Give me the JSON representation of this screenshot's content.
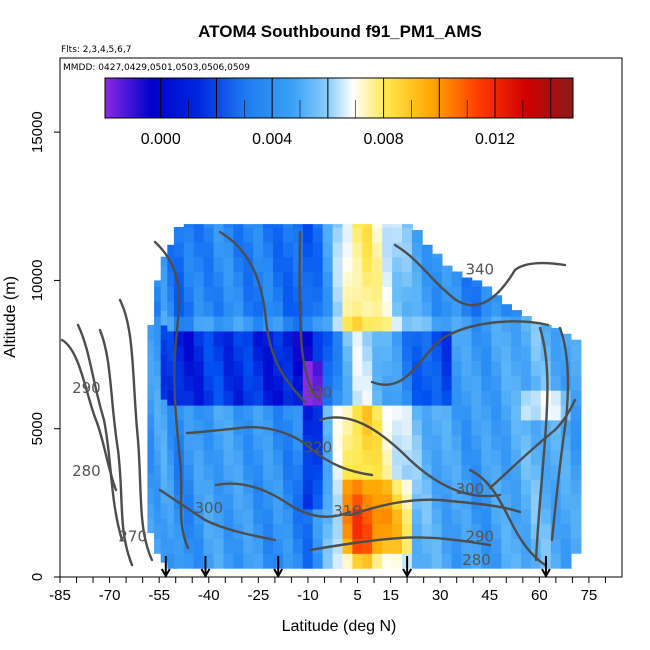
{
  "chart_data": {
    "type": "heatmap",
    "title": "ATOM4 Southbound f91_PM1_AMS",
    "flights_note": "Flts: 2,3,4,5,6,7",
    "dates_note": "MMDD: 0427,0429,0501,0503,0506,0509",
    "xlabel": "Latitude (deg N)",
    "ylabel": "Altitude (m)",
    "xlim": [
      -85,
      85
    ],
    "ylim": [
      0,
      17500
    ],
    "x_ticks": [
      -85,
      -70,
      -55,
      -40,
      -25,
      -10,
      5,
      15,
      30,
      45,
      60,
      75
    ],
    "y_ticks": [
      0,
      5000,
      10000,
      15000
    ],
    "grid": false,
    "colorbar": {
      "range": [
        -0.002,
        0.0148
      ],
      "tick_values": [
        0.0,
        0.004,
        0.008,
        0.012
      ],
      "tick_labels": [
        "0.000",
        "0.004",
        "0.008",
        "0.012"
      ],
      "colors": [
        "#8a2be2",
        "#0000cc",
        "#0050f0",
        "#2a8ef5",
        "#60b8f8",
        "#ffffff",
        "#ffe84a",
        "#ffa500",
        "#ff3a00",
        "#d00000",
        "#8b1a1a"
      ]
    },
    "contour_labels": [
      {
        "value": 340,
        "lat": 42,
        "alt": 10200
      },
      {
        "value": 330,
        "lat": -7,
        "alt": 6050
      },
      {
        "value": 320,
        "lat": -7,
        "alt": 4200
      },
      {
        "value": 310,
        "lat": 2,
        "alt": 2050
      },
      {
        "value": 300,
        "lat": -40,
        "alt": 2150
      },
      {
        "value": 300,
        "lat": 39,
        "alt": 2800
      },
      {
        "value": 290,
        "lat": -77,
        "alt": 6200
      },
      {
        "value": 290,
        "lat": 42,
        "alt": 1200
      },
      {
        "value": 280,
        "lat": -77,
        "alt": 3400
      },
      {
        "value": 280,
        "lat": 41,
        "alt": 400
      },
      {
        "value": 270,
        "lat": -63,
        "alt": 1200
      }
    ],
    "arrow_latitudes": [
      -53,
      -41,
      -19,
      20,
      62
    ],
    "columns": [
      {
        "lat": -57,
        "bottom": 1500,
        "top": 8500,
        "mean": 0.0035
      },
      {
        "lat": -55,
        "bottom": 800,
        "top": 10000,
        "mean": 0.0038
      },
      {
        "lat": -53,
        "bottom": 500,
        "top": 10800,
        "mean": 0.004
      },
      {
        "lat": -51,
        "bottom": 300,
        "top": 11200,
        "mean": 0.0035
      },
      {
        "lat": -49,
        "bottom": 300,
        "top": 11800,
        "mean": 0.003
      },
      {
        "lat": -46,
        "bottom": 300,
        "top": 11900,
        "mean": 0.0032
      },
      {
        "lat": -43,
        "bottom": 300,
        "top": 11900,
        "mean": 0.0035
      },
      {
        "lat": -40,
        "bottom": 300,
        "top": 11900,
        "mean": 0.0037
      },
      {
        "lat": -37,
        "bottom": 300,
        "top": 11900,
        "mean": 0.0038
      },
      {
        "lat": -34,
        "bottom": 300,
        "top": 11900,
        "mean": 0.0037
      },
      {
        "lat": -31,
        "bottom": 300,
        "top": 11900,
        "mean": 0.0036
      },
      {
        "lat": -28,
        "bottom": 300,
        "top": 11900,
        "mean": 0.0035
      },
      {
        "lat": -25,
        "bottom": 300,
        "top": 11900,
        "mean": 0.0034
      },
      {
        "lat": -22,
        "bottom": 300,
        "top": 11900,
        "mean": 0.0033
      },
      {
        "lat": -19,
        "bottom": 300,
        "top": 11900,
        "mean": 0.0032
      },
      {
        "lat": -16,
        "bottom": 300,
        "top": 11900,
        "mean": 0.003
      },
      {
        "lat": -13,
        "bottom": 300,
        "top": 11900,
        "mean": 0.0028
      },
      {
        "lat": -10,
        "bottom": 300,
        "top": 11900,
        "mean": 0.0025
      },
      {
        "lat": -7,
        "bottom": 300,
        "top": 11900,
        "mean": 0.0032
      },
      {
        "lat": -4,
        "bottom": 300,
        "top": 11900,
        "mean": 0.0045
      },
      {
        "lat": -1,
        "bottom": 300,
        "top": 11900,
        "mean": 0.006
      },
      {
        "lat": 2,
        "bottom": 300,
        "top": 11900,
        "mean": 0.0075
      },
      {
        "lat": 5,
        "bottom": 300,
        "top": 11900,
        "mean": 0.0085
      },
      {
        "lat": 8,
        "bottom": 300,
        "top": 11900,
        "mean": 0.0085
      },
      {
        "lat": 11,
        "bottom": 300,
        "top": 11900,
        "mean": 0.0078
      },
      {
        "lat": 14,
        "bottom": 300,
        "top": 11900,
        "mean": 0.007
      },
      {
        "lat": 17,
        "bottom": 300,
        "top": 11900,
        "mean": 0.0062
      },
      {
        "lat": 20,
        "bottom": 300,
        "top": 11900,
        "mean": 0.0055
      },
      {
        "lat": 23,
        "bottom": 300,
        "top": 11700,
        "mean": 0.0048
      },
      {
        "lat": 26,
        "bottom": 300,
        "top": 11200,
        "mean": 0.0045
      },
      {
        "lat": 29,
        "bottom": 300,
        "top": 10900,
        "mean": 0.0042
      },
      {
        "lat": 32,
        "bottom": 300,
        "top": 10500,
        "mean": 0.004
      },
      {
        "lat": 35,
        "bottom": 300,
        "top": 10300,
        "mean": 0.0038
      },
      {
        "lat": 38,
        "bottom": 300,
        "top": 10100,
        "mean": 0.0036
      },
      {
        "lat": 41,
        "bottom": 300,
        "top": 10000,
        "mean": 0.0035
      },
      {
        "lat": 44,
        "bottom": 300,
        "top": 9800,
        "mean": 0.0036
      },
      {
        "lat": 47,
        "bottom": 300,
        "top": 9500,
        "mean": 0.0038
      },
      {
        "lat": 50,
        "bottom": 300,
        "top": 9200,
        "mean": 0.004
      },
      {
        "lat": 53,
        "bottom": 300,
        "top": 9000,
        "mean": 0.0042
      },
      {
        "lat": 56,
        "bottom": 300,
        "top": 8800,
        "mean": 0.0044
      },
      {
        "lat": 59,
        "bottom": 300,
        "top": 8600,
        "mean": 0.0046
      },
      {
        "lat": 62,
        "bottom": 300,
        "top": 8500,
        "mean": 0.0045
      },
      {
        "lat": 65,
        "bottom": 300,
        "top": 8400,
        "mean": 0.0042
      },
      {
        "lat": 68,
        "bottom": 300,
        "top": 8200,
        "mean": 0.004
      },
      {
        "lat": 71,
        "bottom": 800,
        "top": 8000,
        "mean": 0.0038
      }
    ]
  }
}
